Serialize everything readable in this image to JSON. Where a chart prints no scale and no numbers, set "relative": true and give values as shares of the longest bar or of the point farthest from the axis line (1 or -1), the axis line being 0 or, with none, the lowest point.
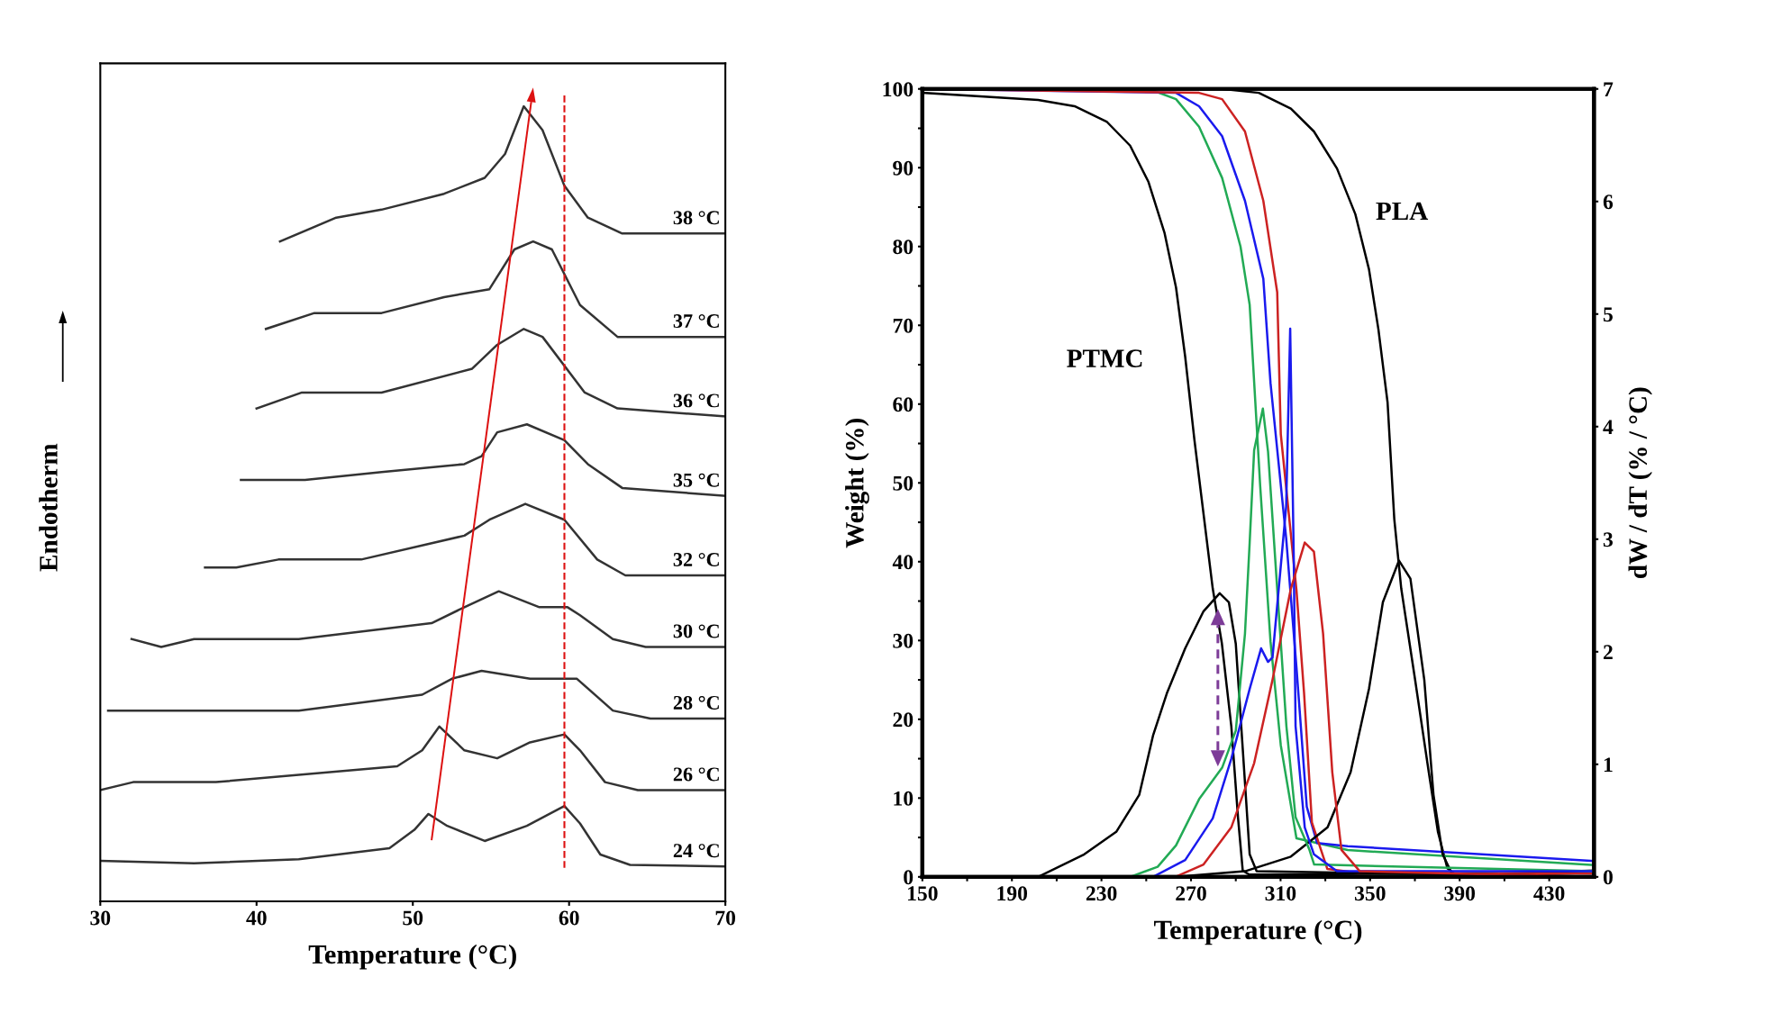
{
  "chart_data": [
    {
      "type": "line",
      "relative": true,
      "xlabel": "Temperature (°C)",
      "ylabel": "Endotherm",
      "xlim": [
        30,
        70
      ],
      "xticks": [
        30,
        40,
        50,
        60,
        70
      ],
      "tick_labels": "x",
      "series": [
        {
          "name": "38 °C",
          "color": "#333333",
          "x": [
            41.5,
            45.1,
            48.0,
            52.0,
            54.6,
            55.9,
            57.1,
            58.3,
            59.7,
            61.2,
            63.4,
            70
          ],
          "values": [
            0.83,
            0.86,
            0.87,
            0.89,
            0.91,
            0.94,
            1.0,
            0.97,
            0.9,
            0.86,
            0.84,
            0.84
          ]
        },
        {
          "name": "37 °C",
          "color": "#333333",
          "x": [
            40.6,
            43.7,
            48.0,
            52.0,
            54.9,
            56.5,
            57.7,
            58.9,
            60.7,
            63.1,
            70
          ],
          "values": [
            0.72,
            0.74,
            0.74,
            0.76,
            0.77,
            0.82,
            0.83,
            0.82,
            0.75,
            0.71,
            0.71
          ]
        },
        {
          "name": "36 °C",
          "color": "#333333",
          "x": [
            40.0,
            42.9,
            48.0,
            53.8,
            55.4,
            57.1,
            58.3,
            61.0,
            63.1,
            70
          ],
          "values": [
            0.62,
            0.64,
            0.64,
            0.67,
            0.7,
            0.72,
            0.71,
            0.64,
            0.62,
            0.61
          ]
        },
        {
          "name": "35 °C",
          "color": "#333333",
          "x": [
            39.0,
            40.6,
            42.8,
            43.1,
            48.0,
            53.3,
            54.4,
            55.4,
            57.3,
            59.7,
            61.2,
            63.4,
            70
          ],
          "values": [
            0.53,
            0.53,
            0.53,
            0.53,
            0.54,
            0.55,
            0.56,
            0.59,
            0.6,
            0.58,
            0.55,
            0.52,
            0.51
          ]
        },
        {
          "name": "32 °C",
          "color": "#333333",
          "x": [
            36.7,
            38.7,
            41.4,
            46.7,
            53.3,
            54.9,
            57.2,
            59.7,
            61.8,
            63.6,
            70
          ],
          "values": [
            0.42,
            0.42,
            0.43,
            0.43,
            0.46,
            0.48,
            0.5,
            0.48,
            0.43,
            0.41,
            0.41
          ]
        },
        {
          "name": "30 °C",
          "color": "#333333",
          "x": [
            32.0,
            33.9,
            36.0,
            42.7,
            51.2,
            53.3,
            55.5,
            58.1,
            59.9,
            60.7,
            62.8,
            64.9,
            70
          ],
          "values": [
            0.33,
            0.32,
            0.33,
            0.33,
            0.35,
            0.37,
            0.39,
            0.37,
            0.37,
            0.36,
            0.33,
            0.32,
            0.32
          ]
        },
        {
          "name": "28 °C",
          "color": "#333333",
          "x": [
            30.5,
            31.5,
            36.0,
            42.7,
            50.6,
            52.5,
            54.4,
            57.5,
            60.5,
            62.8,
            65.2,
            70
          ],
          "values": [
            0.24,
            0.24,
            0.24,
            0.24,
            0.26,
            0.28,
            0.29,
            0.28,
            0.28,
            0.24,
            0.23,
            0.23
          ]
        },
        {
          "name": "26 °C",
          "color": "#333333",
          "x": [
            30,
            32.1,
            37.4,
            49.0,
            50.6,
            51.7,
            53.3,
            55.4,
            57.5,
            59.7,
            60.7,
            62.3,
            64.4,
            70
          ],
          "values": [
            0.14,
            0.15,
            0.15,
            0.17,
            0.19,
            0.22,
            0.19,
            0.18,
            0.2,
            0.21,
            0.19,
            0.15,
            0.14,
            0.14
          ]
        },
        {
          "name": "24 °C",
          "color": "#333333",
          "x": [
            30,
            36.0,
            42.7,
            48.5,
            50.1,
            51.0,
            52.2,
            54.6,
            57.3,
            59.7,
            60.7,
            62.0,
            63.9,
            70
          ],
          "values": [
            0.051,
            0.048,
            0.053,
            0.067,
            0.09,
            0.11,
            0.095,
            0.076,
            0.095,
            0.12,
            0.098,
            0.059,
            0.046,
            0.044
          ]
        }
      ],
      "ref_lines": [
        {
          "axis": "x",
          "value": 59.7,
          "color": "#dd1111",
          "line_style": "dashed"
        }
      ]
    },
    {
      "type": "line",
      "xlabel": "Temperature (°C)",
      "ylabel": "Weight (%)",
      "y2label": "dW / dT (% / °C)",
      "xlim": [
        150,
        450
      ],
      "xticks": [
        150,
        {
          "value": 170,
          "label": null
        },
        190,
        {
          "value": 210,
          "label": null
        },
        230,
        {
          "value": 250,
          "label": null
        },
        270,
        {
          "value": 290,
          "label": null
        },
        310,
        {
          "value": 330,
          "label": null
        },
        350,
        {
          "value": 370,
          "label": null
        },
        390,
        {
          "value": 410,
          "label": null
        },
        430
      ],
      "ylim": [
        0,
        100
      ],
      "yticks": [
        0,
        {
          "value": 5,
          "label": null
        },
        10,
        {
          "value": 15,
          "label": null
        },
        20,
        {
          "value": 25,
          "label": null
        },
        30,
        {
          "value": 35,
          "label": null
        },
        40,
        {
          "value": 45,
          "label": null
        },
        50,
        {
          "value": 55,
          "label": null
        },
        60,
        {
          "value": 65,
          "label": null
        },
        70,
        {
          "value": 75,
          "label": null
        },
        80,
        {
          "value": 85,
          "label": null
        },
        90,
        {
          "value": 95,
          "label": null
        },
        100
      ],
      "y2lim": [
        0,
        7
      ],
      "y2ticks": [
        0,
        1,
        2,
        3,
        4,
        5,
        6,
        7
      ],
      "series": [
        {
          "color": "#000000",
          "x": [
            150,
            201.7,
            218,
            232.5,
            242.8,
            251,
            258.2,
            263.3,
            267.4,
            271.5,
            279.7,
            283.8,
            288,
            291,
            293.1,
            296,
            450
          ],
          "values": [
            99.5,
            98.6,
            97.8,
            95.8,
            92.8,
            88.2,
            81.7,
            74.8,
            66.0,
            55.5,
            36.6,
            29.6,
            19.1,
            7.5,
            0.8,
            0.3,
            0.5
          ]
        },
        {
          "color": "#000000",
          "x": [
            150,
            283.9,
            300.3,
            314.6,
            324.9,
            335.2,
            343.4,
            349.5,
            353.7,
            357.8,
            360.8,
            363.9,
            370.1,
            376.2,
            380.3,
            384.5,
            388.5,
            450
          ],
          "values": [
            100,
            100,
            99.5,
            97.5,
            94.6,
            89.9,
            84.1,
            77.1,
            69.5,
            60.2,
            45.4,
            36.6,
            25.0,
            13.3,
            5.7,
            1.1,
            0.2,
            0.8
          ]
        },
        {
          "color": "#22aa55",
          "x": [
            150,
            253,
            263.3,
            273.6,
            283.9,
            292.1,
            296.2,
            300.9,
            305.5,
            310.1,
            317.1,
            340,
            450
          ],
          "values": [
            100,
            99.8,
            98.7,
            95.2,
            88.7,
            80.0,
            72.6,
            49.6,
            29.9,
            16.7,
            4.9,
            3.4,
            1.5
          ]
        },
        {
          "color": "#1a1aee",
          "x": [
            150,
            263.3,
            273.6,
            283.9,
            294.1,
            302.3,
            305.5,
            312.5,
            317.1,
            321.7,
            326.3,
            340,
            450
          ],
          "values": [
            100,
            99.5,
            97.8,
            94.0,
            85.8,
            75.9,
            62.7,
            43.0,
            26.6,
            8.9,
            4.3,
            3.9,
            2.0
          ]
        },
        {
          "color": "#cc2222",
          "x": [
            150,
            273.6,
            283.9,
            294.1,
            302.3,
            308.5,
            310.1,
            317.1,
            320.5,
            324.0,
            330.9,
            345,
            450
          ],
          "values": [
            100,
            99.5,
            98.7,
            94.6,
            85.8,
            74.2,
            56.2,
            36.4,
            23.3,
            6.9,
            1.0,
            0.5,
            0.4
          ]
        },
        {
          "color": "#000000",
          "axis": "y2",
          "x": [
            150,
            201.7,
            222.3,
            236.6,
            246.9,
            253.1,
            259.2,
            267.4,
            275.6,
            282.8,
            286.9,
            290,
            293.1,
            296.2,
            299.3,
            450
          ],
          "values": [
            0,
            0,
            0.2,
            0.4,
            0.73,
            1.26,
            1.63,
            2.03,
            2.36,
            2.52,
            2.44,
            2.07,
            1.14,
            0.2,
            0.05,
            0
          ]
        },
        {
          "color": "#000000",
          "axis": "y2",
          "x": [
            150,
            263.3,
            294.1,
            314.6,
            331,
            341.3,
            349.5,
            355.7,
            362.9,
            368,
            374.2,
            378.3,
            382.4,
            386.5,
            450
          ],
          "values": [
            0,
            0,
            0.05,
            0.18,
            0.44,
            0.93,
            1.67,
            2.44,
            2.81,
            2.65,
            1.75,
            0.73,
            0.2,
            0.03,
            0
          ]
        },
        {
          "color": "#22aa55",
          "axis": "y2",
          "x": [
            150,
            242.8,
            255.1,
            263.3,
            273.6,
            283.9,
            290,
            294.1,
            296.2,
            298.2,
            302.1,
            304.4,
            308.5,
            312.6,
            316.7,
            322.9,
            325,
            450
          ],
          "values": [
            0,
            0,
            0.09,
            0.28,
            0.69,
            0.97,
            1.3,
            2.16,
            2.97,
            3.79,
            4.16,
            3.78,
            2.56,
            1.34,
            0.53,
            0.24,
            0.11,
            0.05
          ]
        },
        {
          "color": "#1a1aee",
          "axis": "y2",
          "x": [
            150,
            253,
            267.4,
            279.7,
            288,
            296.2,
            301.3,
            304.4,
            306.4,
            312.5,
            314.3,
            315.9,
            316.7,
            320.8,
            324.9,
            335.2,
            450
          ],
          "values": [
            0,
            0,
            0.15,
            0.52,
            1.05,
            1.67,
            2.03,
            1.91,
            1.95,
            3.29,
            4.87,
            2.83,
            1.34,
            0.44,
            0.2,
            0.05,
            0.05
          ]
        },
        {
          "color": "#cc2222",
          "axis": "y2",
          "x": [
            150,
            263,
            275.6,
            288,
            298.2,
            306.4,
            314.6,
            320.8,
            324.9,
            329,
            333.1,
            337.2,
            345.4,
            450
          ],
          "values": [
            0,
            0,
            0.11,
            0.44,
            1.01,
            1.75,
            2.56,
            2.97,
            2.89,
            2.16,
            0.93,
            0.24,
            0.05,
            0
          ]
        }
      ],
      "annotations": [
        "PTMC",
        "PLA"
      ]
    }
  ]
}
